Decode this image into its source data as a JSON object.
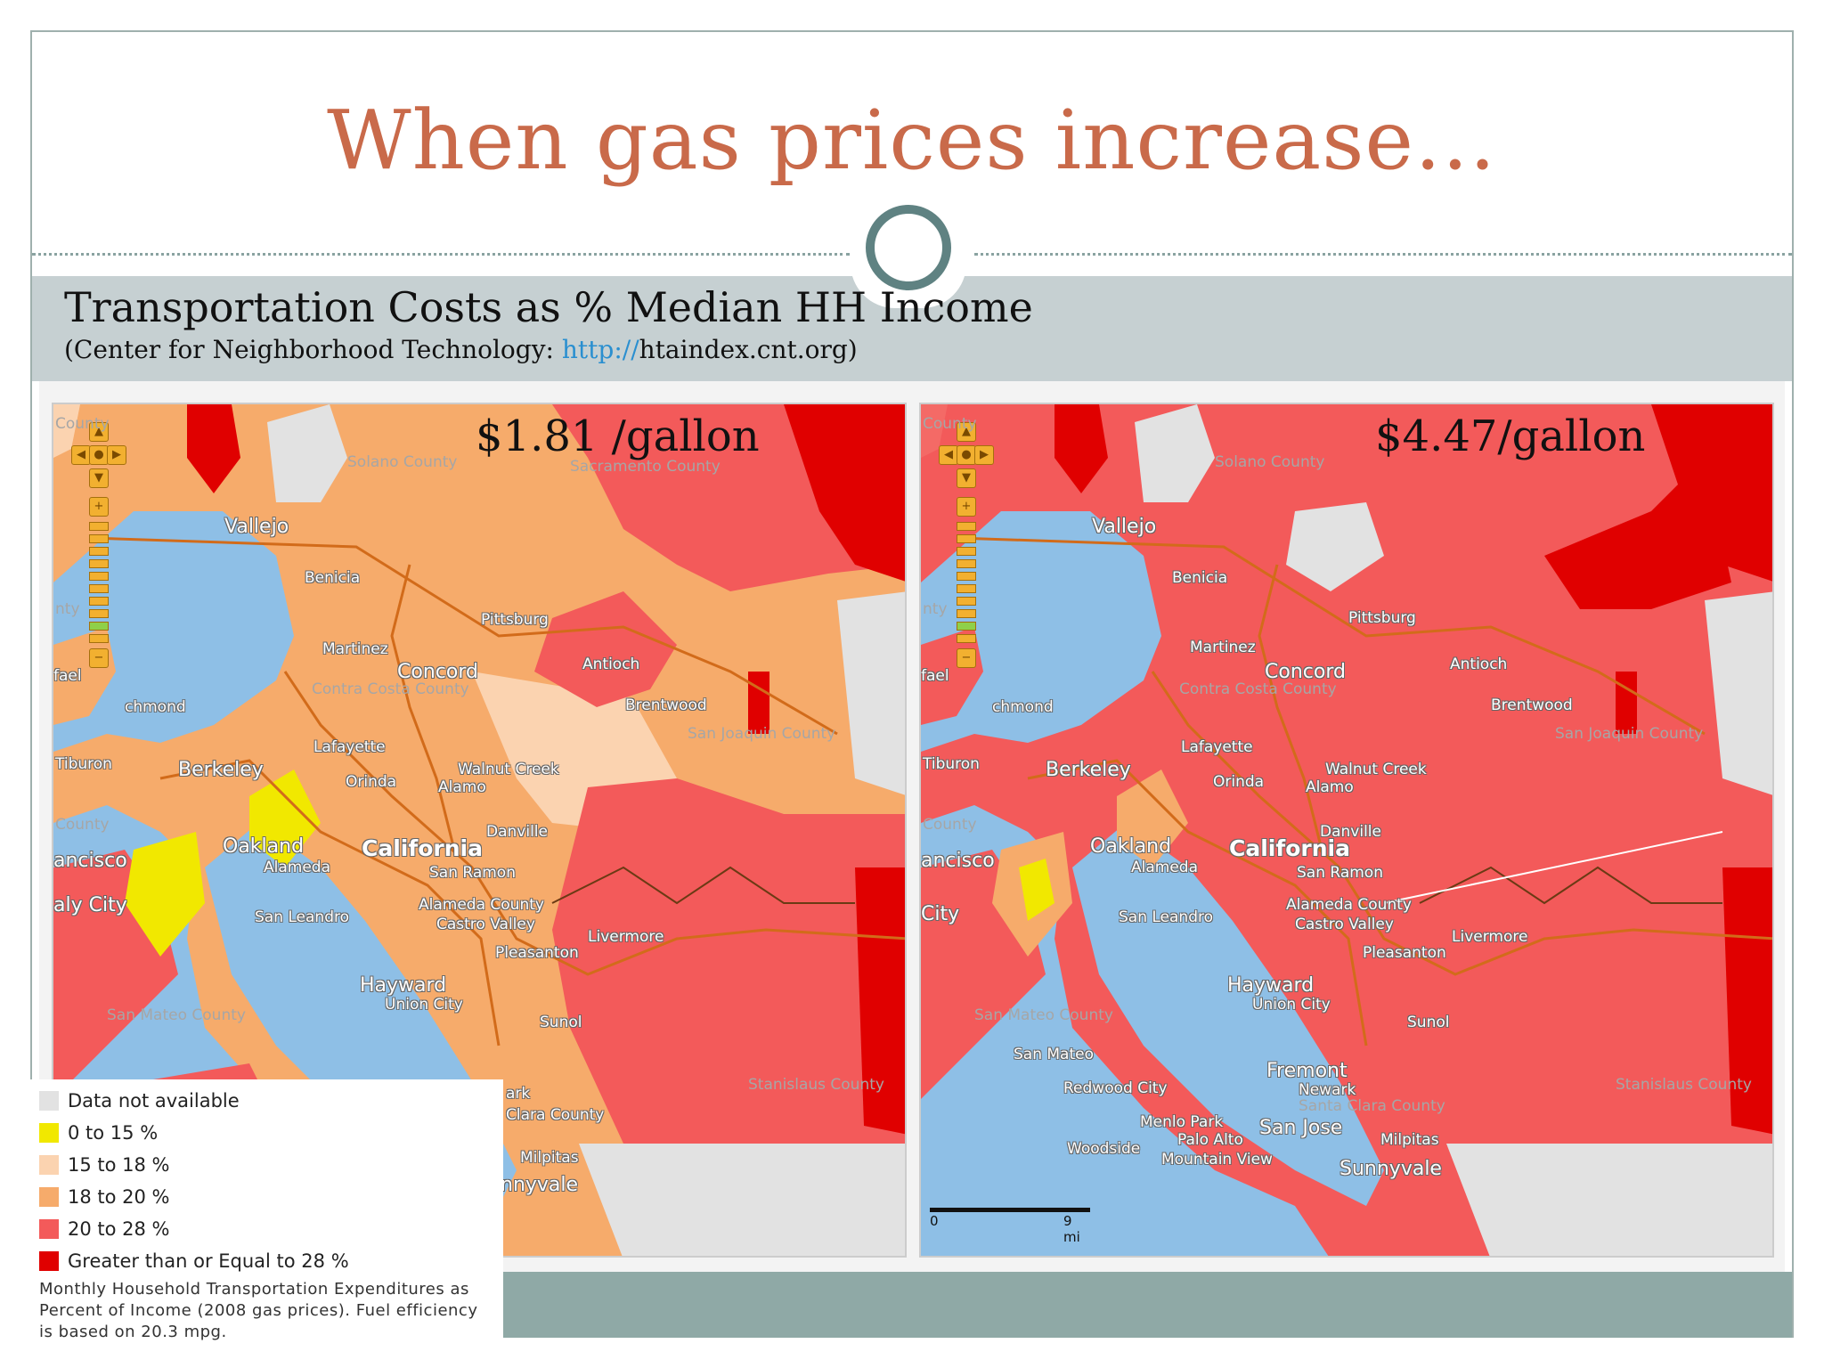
{
  "slide": {
    "title": "When gas prices increase…",
    "subtitle": "Transportation Costs as % Median HH Income",
    "source_prefix": "(Center for Neighborhood Technology: ",
    "source_link": "http://",
    "source_suffix": "htaindex.cnt.org)"
  },
  "maps": [
    {
      "price_label": "$1.81 /gallon",
      "colors": {
        "base": "#f6ab6b",
        "secondary": "#fbd3b0",
        "high": "#f35a5a",
        "accent": "#e00000"
      }
    },
    {
      "price_label": "$4.47/gallon",
      "colors": {
        "base": "#f35a5a",
        "secondary": "#f46a66",
        "high": "#f35a5a",
        "accent": "#e00000"
      }
    }
  ],
  "places": {
    "vallejo": "Vallejo",
    "benicia": "Benicia",
    "pittsburg": "Pittsburg",
    "martinez": "Martinez",
    "concord": "Concord",
    "antioch": "Antioch",
    "brentwood": "Brentwood",
    "contra_costa": "Contra Costa County",
    "solano": "Solano County",
    "sacramento": "Sacramento County",
    "san_joaquin": "San Joaquin County",
    "lafayette": "Lafayette",
    "berkeley": "Berkeley",
    "orinda": "Orinda",
    "walnut_creek": "Walnut Creek",
    "alamo": "Alamo",
    "danville": "Danville",
    "tiburon": "Tiburon",
    "oakland": "Oakland",
    "california": "California",
    "alameda": "Alameda",
    "san_ramon": "San Ramon",
    "alameda_county": "Alameda County",
    "san_leandro": "San Leandro",
    "castro_valley": "Castro Valley",
    "livermore": "Livermore",
    "pleasanton": "Pleasanton",
    "hayward": "Hayward",
    "union_city": "Union City",
    "sunol": "Sunol",
    "san_mateo_county": "San Mateo County",
    "stanislaus": "Stanislaus County",
    "milpitas": "Milpitas",
    "sunnyvale_left": "nnyvale",
    "santa_clara_left": "Clara County",
    "park_left": "ark",
    "san_mateo": "San Mateo",
    "fremont": "Fremont",
    "newark": "Newark",
    "santa_clara_county": "Santa Clara County",
    "redwood_city": "Redwood City",
    "menlo_park": "Menlo Park",
    "san_jose": "San Jose",
    "palo_alto": "Palo Alto",
    "woodside": "Woodside",
    "mountain_view": "Mountain View",
    "sunnyvale": "Sunnyvale",
    "richmond_cut": "chmond",
    "rafael_cut": "fael",
    "francisco_cut": "ancisco",
    "daly_city_cut": "aly City",
    "daly_city_cut2": "City",
    "county_cut": "County",
    "nty_cut": "nty",
    "county_cut2": "County"
  },
  "nav_icons": [
    "pan-up-icon",
    "pan-left-icon",
    "pan-center-icon",
    "pan-right-icon",
    "pan-down-icon",
    "zoom-in-icon"
  ],
  "scale": {
    "start": "0",
    "end": "9 mi"
  },
  "legend": {
    "items": [
      {
        "label": "Data not available",
        "color": "#e2e2e2"
      },
      {
        "label": "0 to 15 %",
        "color": "#f1e800"
      },
      {
        "label": "15 to 18 %",
        "color": "#fbd3b0"
      },
      {
        "label": "18 to 20 %",
        "color": "#f6ab6b"
      },
      {
        "label": "20 to 28 %",
        "color": "#f35a5a"
      },
      {
        "label": "Greater than or Equal to 28 %",
        "color": "#e00000"
      }
    ],
    "note": "Monthly Household Transportation Expenditures as Percent of Income (2008 gas prices). Fuel efficiency is based on 20.3 mpg."
  }
}
